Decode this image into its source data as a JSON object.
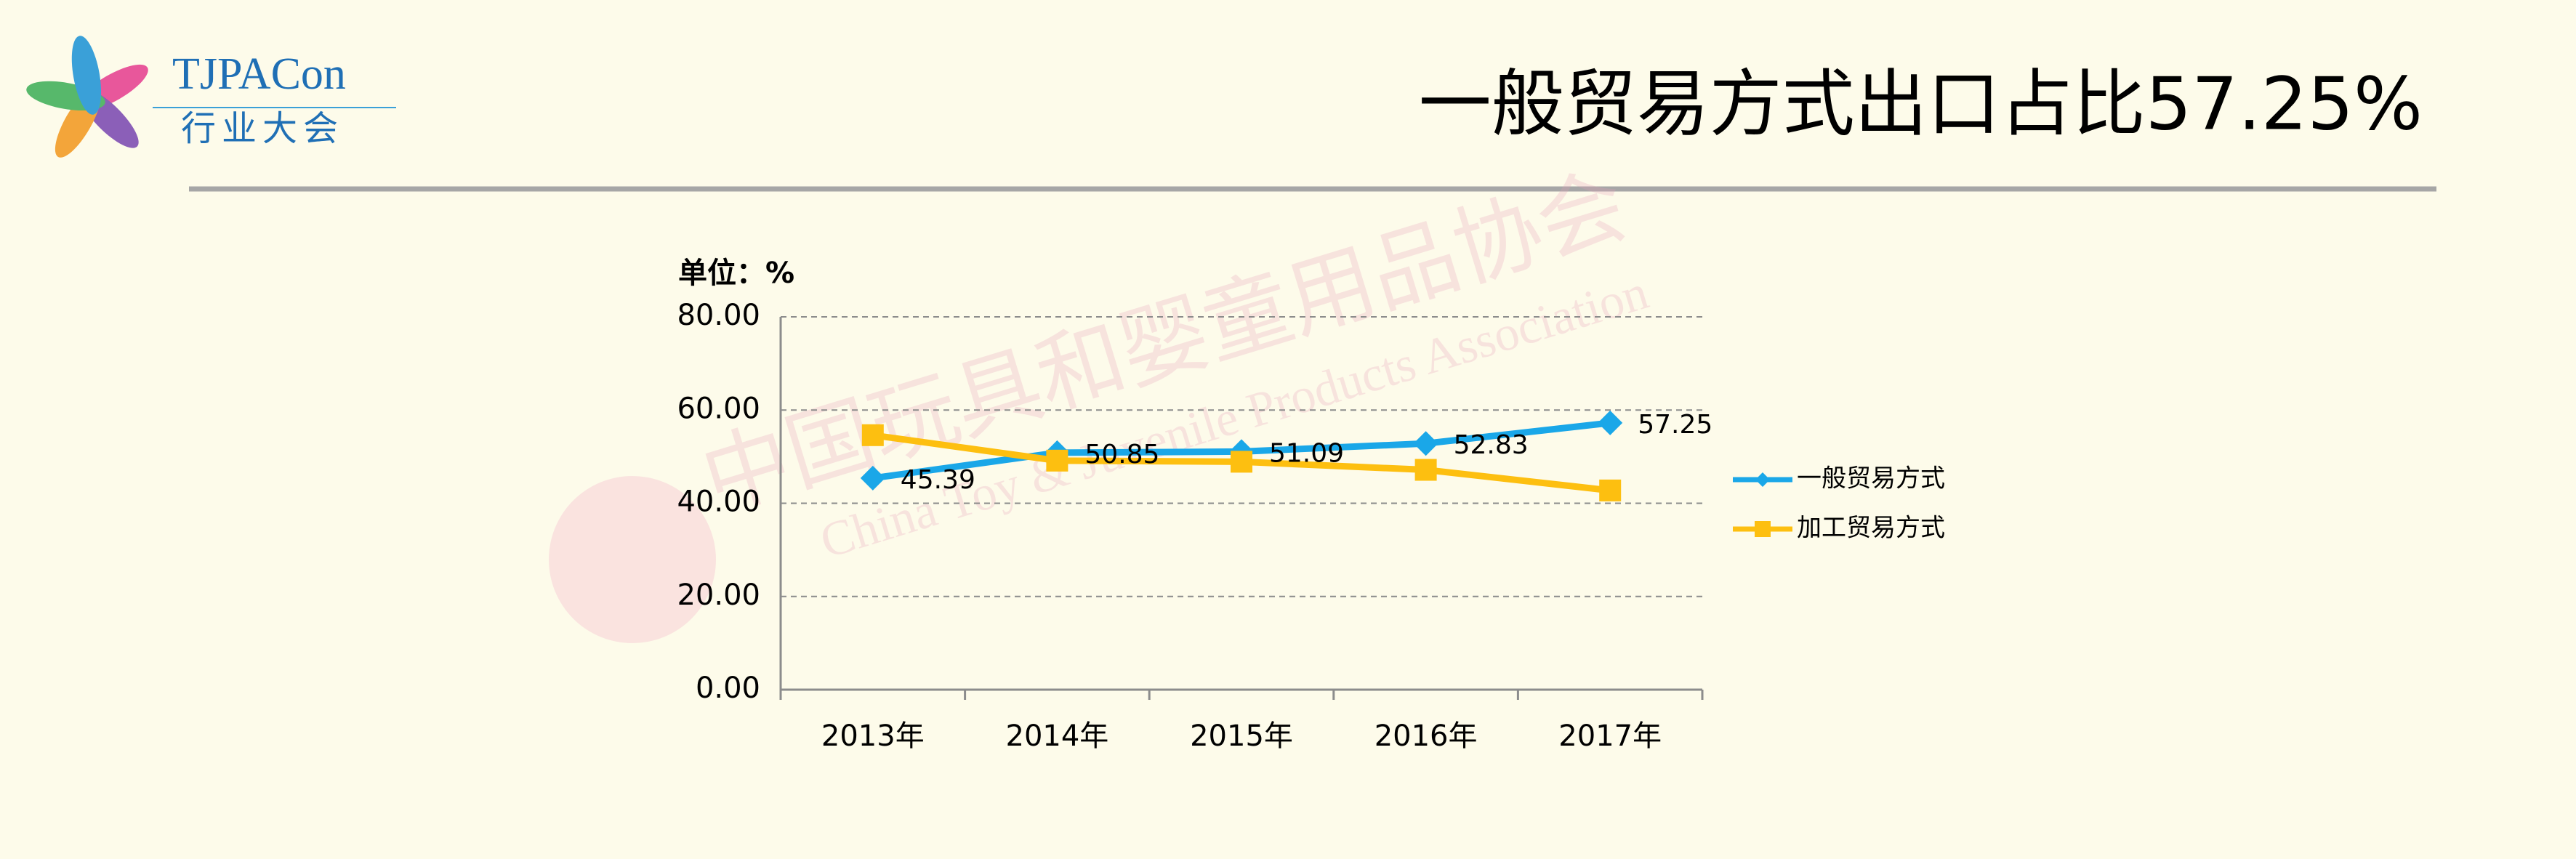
{
  "header": {
    "logo_title": "TJPACon",
    "logo_subtitle": "行业大会",
    "title": "一般贸易方式出口占比57.25%"
  },
  "watermark": {
    "cn": "中国玩具和婴童用品协会",
    "en": "China Toy & Juvenile Products Association"
  },
  "chart_data": {
    "type": "line",
    "unit_label": "单位：%",
    "categories": [
      "2013年",
      "2014年",
      "2015年",
      "2016年",
      "2017年"
    ],
    "series": [
      {
        "name": "一般贸易方式",
        "color": "#1aa7e8",
        "marker": "diamond",
        "data_labels": true,
        "values": [
          45.39,
          50.85,
          51.09,
          52.83,
          57.25
        ]
      },
      {
        "name": "加工贸易方式",
        "color": "#fdbf10",
        "marker": "square",
        "data_labels": false,
        "values": [
          54.61,
          49.15,
          48.91,
          47.17,
          42.75
        ]
      }
    ],
    "ylim": [
      0,
      80
    ],
    "yticks": [
      {
        "value": 0,
        "label": "0.00"
      },
      {
        "value": 20,
        "label": "20.00"
      },
      {
        "value": 40,
        "label": "40.00"
      },
      {
        "value": 60,
        "label": "60.00"
      },
      {
        "value": 80,
        "label": "80.00"
      }
    ],
    "grid": true,
    "legend": "right"
  }
}
